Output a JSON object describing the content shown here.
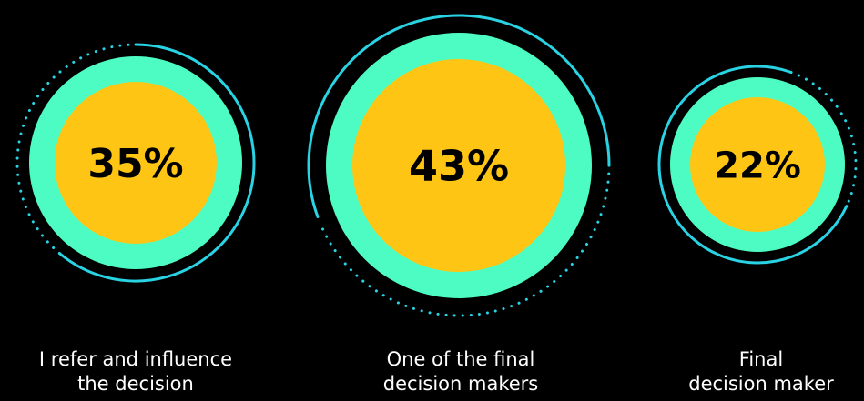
{
  "chart_data": {
    "type": "pie",
    "title": "",
    "items": [
      {
        "value": 35,
        "value_label": "35%",
        "label_lines": [
          "I refer and influence",
          "the decision"
        ]
      },
      {
        "value": 43,
        "value_label": "43%",
        "label_lines": [
          "One of the final",
          "decision makers"
        ]
      },
      {
        "value": 22,
        "value_label": "22%",
        "label_lines": [
          "Final",
          "decision maker"
        ]
      }
    ]
  },
  "colors": {
    "background": "#000000",
    "outer_ring": "#4dfcc2",
    "inner_circle": "#ffc514",
    "orbit": "#29d3e4",
    "value_text": "#000000",
    "caption_text": "#ffffff"
  }
}
